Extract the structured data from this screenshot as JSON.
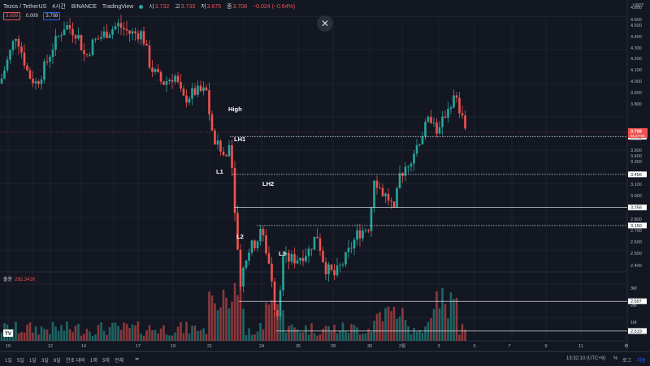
{
  "header": {
    "symbol": "Tezos / TetherUS",
    "interval": "4시간",
    "exchange": "BINANCE",
    "platform": "TradingView",
    "open_label": "시",
    "open": "3.732",
    "high_label": "고",
    "high": "3.733",
    "low_label": "저",
    "low": "3.675",
    "close_label": "종",
    "close": "3.708",
    "change": "−0.024 (−0.64%)",
    "sell_price": "3.699",
    "spread": "0.009",
    "buy_price": "3.708"
  },
  "volume": {
    "label": "출용",
    "value": "292.341K"
  },
  "price_axis": {
    "unit": "USDT",
    "ticks": [
      "4.800",
      "4.600",
      "4.500",
      "4.400",
      "4.300",
      "4.200",
      "4.100",
      "4.000",
      "3.900",
      "3.800",
      "3.600",
      "3.500",
      "3.400",
      "3.300",
      "3.200",
      "3.100",
      "3.000",
      "2.900",
      "2.800",
      "2.700",
      "2.600",
      "2.500",
      "2.400"
    ],
    "current_price": "3.708",
    "countdown": "01:27:50",
    "level_labels": [
      "3.682",
      "3.456",
      "3.258",
      "3.150",
      "2.697",
      "2.519"
    ],
    "volume_ticks": [
      "3M",
      "2M",
      "1M"
    ]
  },
  "time_axis": {
    "labels": [
      "10",
      "12",
      "14",
      "17",
      "19",
      "21",
      "23",
      "24",
      "26",
      "28",
      "30",
      "2월",
      "3",
      "5",
      "7",
      "9",
      "11"
    ]
  },
  "annotations": [
    "High",
    "LH1",
    "L1",
    "LH2",
    "L2",
    "L3"
  ],
  "bottom_bar": {
    "ranges": [
      "1일",
      "5일",
      "1달",
      "3달",
      "6달",
      "연초 대비",
      "1해",
      "5해",
      "전체"
    ],
    "time": "13:32:10 (UTC+9)",
    "percent": "%",
    "log": "로그",
    "auto": "자동"
  },
  "colors": {
    "up": "#26a69a",
    "down": "#ef5350",
    "background": "#131722",
    "grid": "#1e222d"
  }
}
